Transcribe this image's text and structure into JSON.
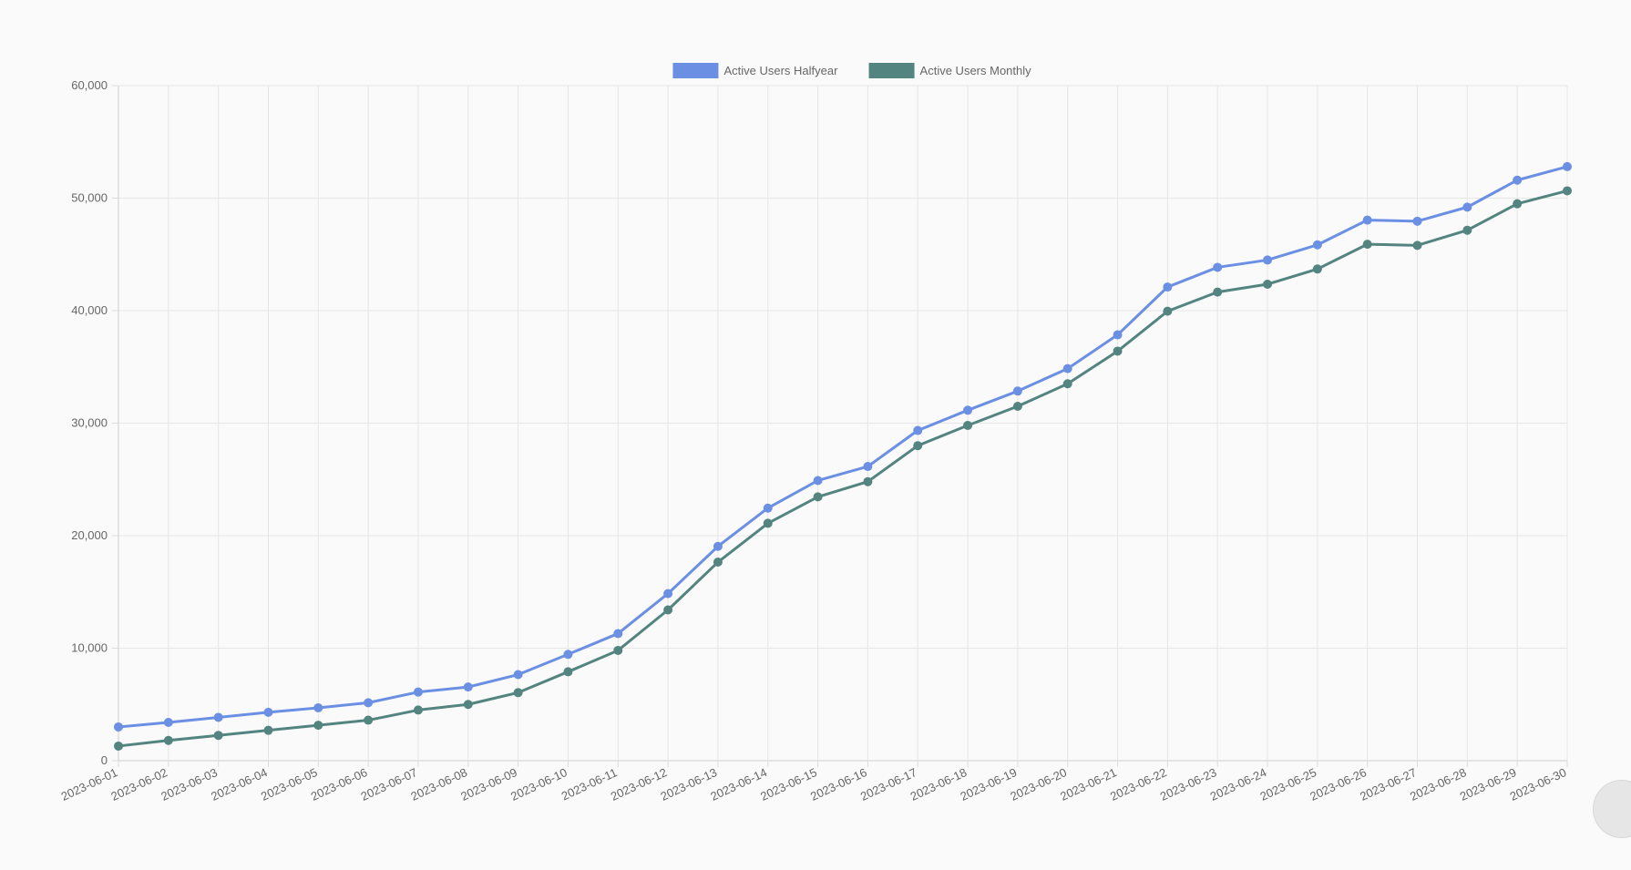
{
  "chart_data": {
    "type": "line",
    "title": "",
    "xlabel": "",
    "ylabel": "",
    "ylim": [
      0,
      60000
    ],
    "y_ticks": [
      "0",
      "10,000",
      "20,000",
      "30,000",
      "40,000",
      "50,000",
      "60,000"
    ],
    "grid": true,
    "legend_position": "top-center",
    "x": [
      "2023-06-01",
      "2023-06-02",
      "2023-06-03",
      "2023-06-04",
      "2023-06-05",
      "2023-06-06",
      "2023-06-07",
      "2023-06-08",
      "2023-06-09",
      "2023-06-10",
      "2023-06-11",
      "2023-06-12",
      "2023-06-13",
      "2023-06-14",
      "2023-06-15",
      "2023-06-16",
      "2023-06-17",
      "2023-06-18",
      "2023-06-19",
      "2023-06-20",
      "2023-06-21",
      "2023-06-22",
      "2023-06-23",
      "2023-06-24",
      "2023-06-25",
      "2023-06-26",
      "2023-06-27",
      "2023-06-28",
      "2023-06-29",
      "2023-06-30"
    ],
    "series": [
      {
        "name": "Active Users Halfyear",
        "color": "#6b8fe3",
        "values": [
          3000,
          3400,
          3850,
          4300,
          4700,
          5150,
          6100,
          6550,
          7650,
          9450,
          11300,
          14850,
          19050,
          22450,
          24900,
          26150,
          29350,
          31150,
          32850,
          34850,
          37850,
          42100,
          43850,
          44500,
          45850,
          48050,
          47950,
          49200,
          51600,
          52800
        ]
      },
      {
        "name": "Active Users Monthly",
        "color": "#538480",
        "values": [
          1300,
          1800,
          2250,
          2700,
          3150,
          3600,
          4500,
          5000,
          6050,
          7900,
          9800,
          13400,
          17650,
          21100,
          23450,
          24800,
          28000,
          29800,
          31500,
          33500,
          36400,
          39950,
          41650,
          42350,
          43700,
          45900,
          45800,
          47150,
          49500,
          50650
        ]
      }
    ]
  }
}
